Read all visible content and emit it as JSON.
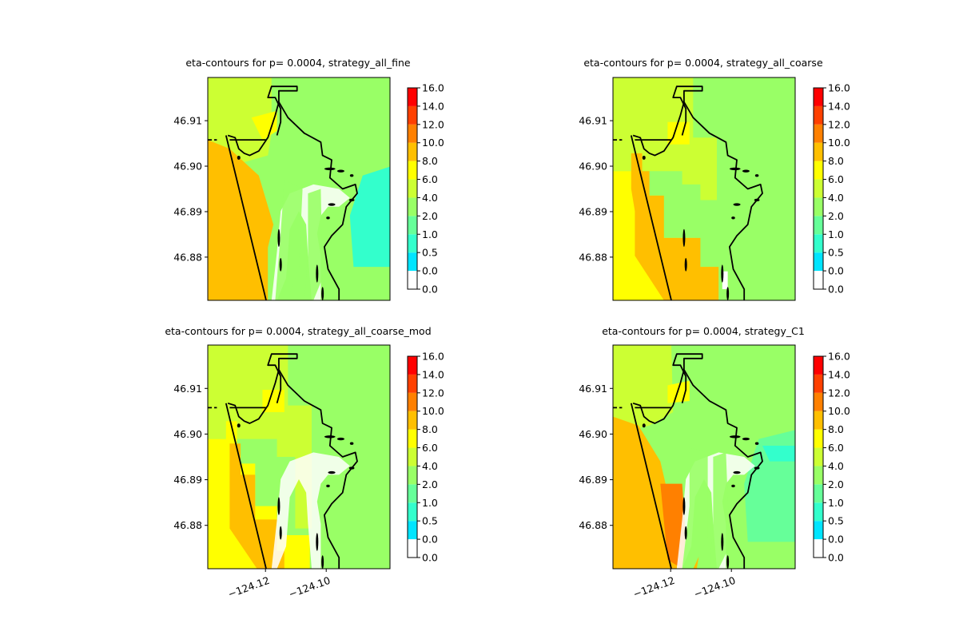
{
  "chart_data": {
    "type": "heatmap",
    "colorbar": {
      "tick_labels": [
        "0.0",
        "0.0",
        "0.5",
        "1.0",
        "2.0",
        "4.0",
        "6.0",
        "8.0",
        "10.0",
        "12.0",
        "14.0",
        "16.0"
      ],
      "level_colors": [
        "#ffffff",
        "#00e5ff",
        "#33ffcc",
        "#66ff99",
        "#99ff66",
        "#ccff33",
        "#ffff00",
        "#ffbf00",
        "#ff8000",
        "#ff4000",
        "#ff0000"
      ]
    },
    "y_ticks": [
      "46.91",
      "46.90",
      "46.89",
      "46.88"
    ],
    "y_tick_values": [
      46.91,
      46.9,
      46.89,
      46.88
    ],
    "x_ticks": [
      "−124.12",
      "−124.10"
    ],
    "x_tick_values": [
      -124.12,
      -124.1
    ],
    "xlim": [
      -124.139,
      -124.079
    ],
    "ylim": [
      46.8705,
      46.9195
    ],
    "panels": [
      {
        "title": "eta-contours for p= 0.0004, strategy_all_fine",
        "strategy": "all_fine",
        "show_x_ticks": false
      },
      {
        "title": "eta-contours for p= 0.0004, strategy_all_coarse",
        "strategy": "all_coarse",
        "show_x_ticks": false
      },
      {
        "title": "eta-contours for p= 0.0004, strategy_all_coarse_mod",
        "strategy": "all_coarse_mod",
        "show_x_ticks": true
      },
      {
        "title": "eta-contours for p= 0.0004, strategy_C1",
        "strategy": "C1",
        "show_x_ticks": true
      }
    ]
  }
}
